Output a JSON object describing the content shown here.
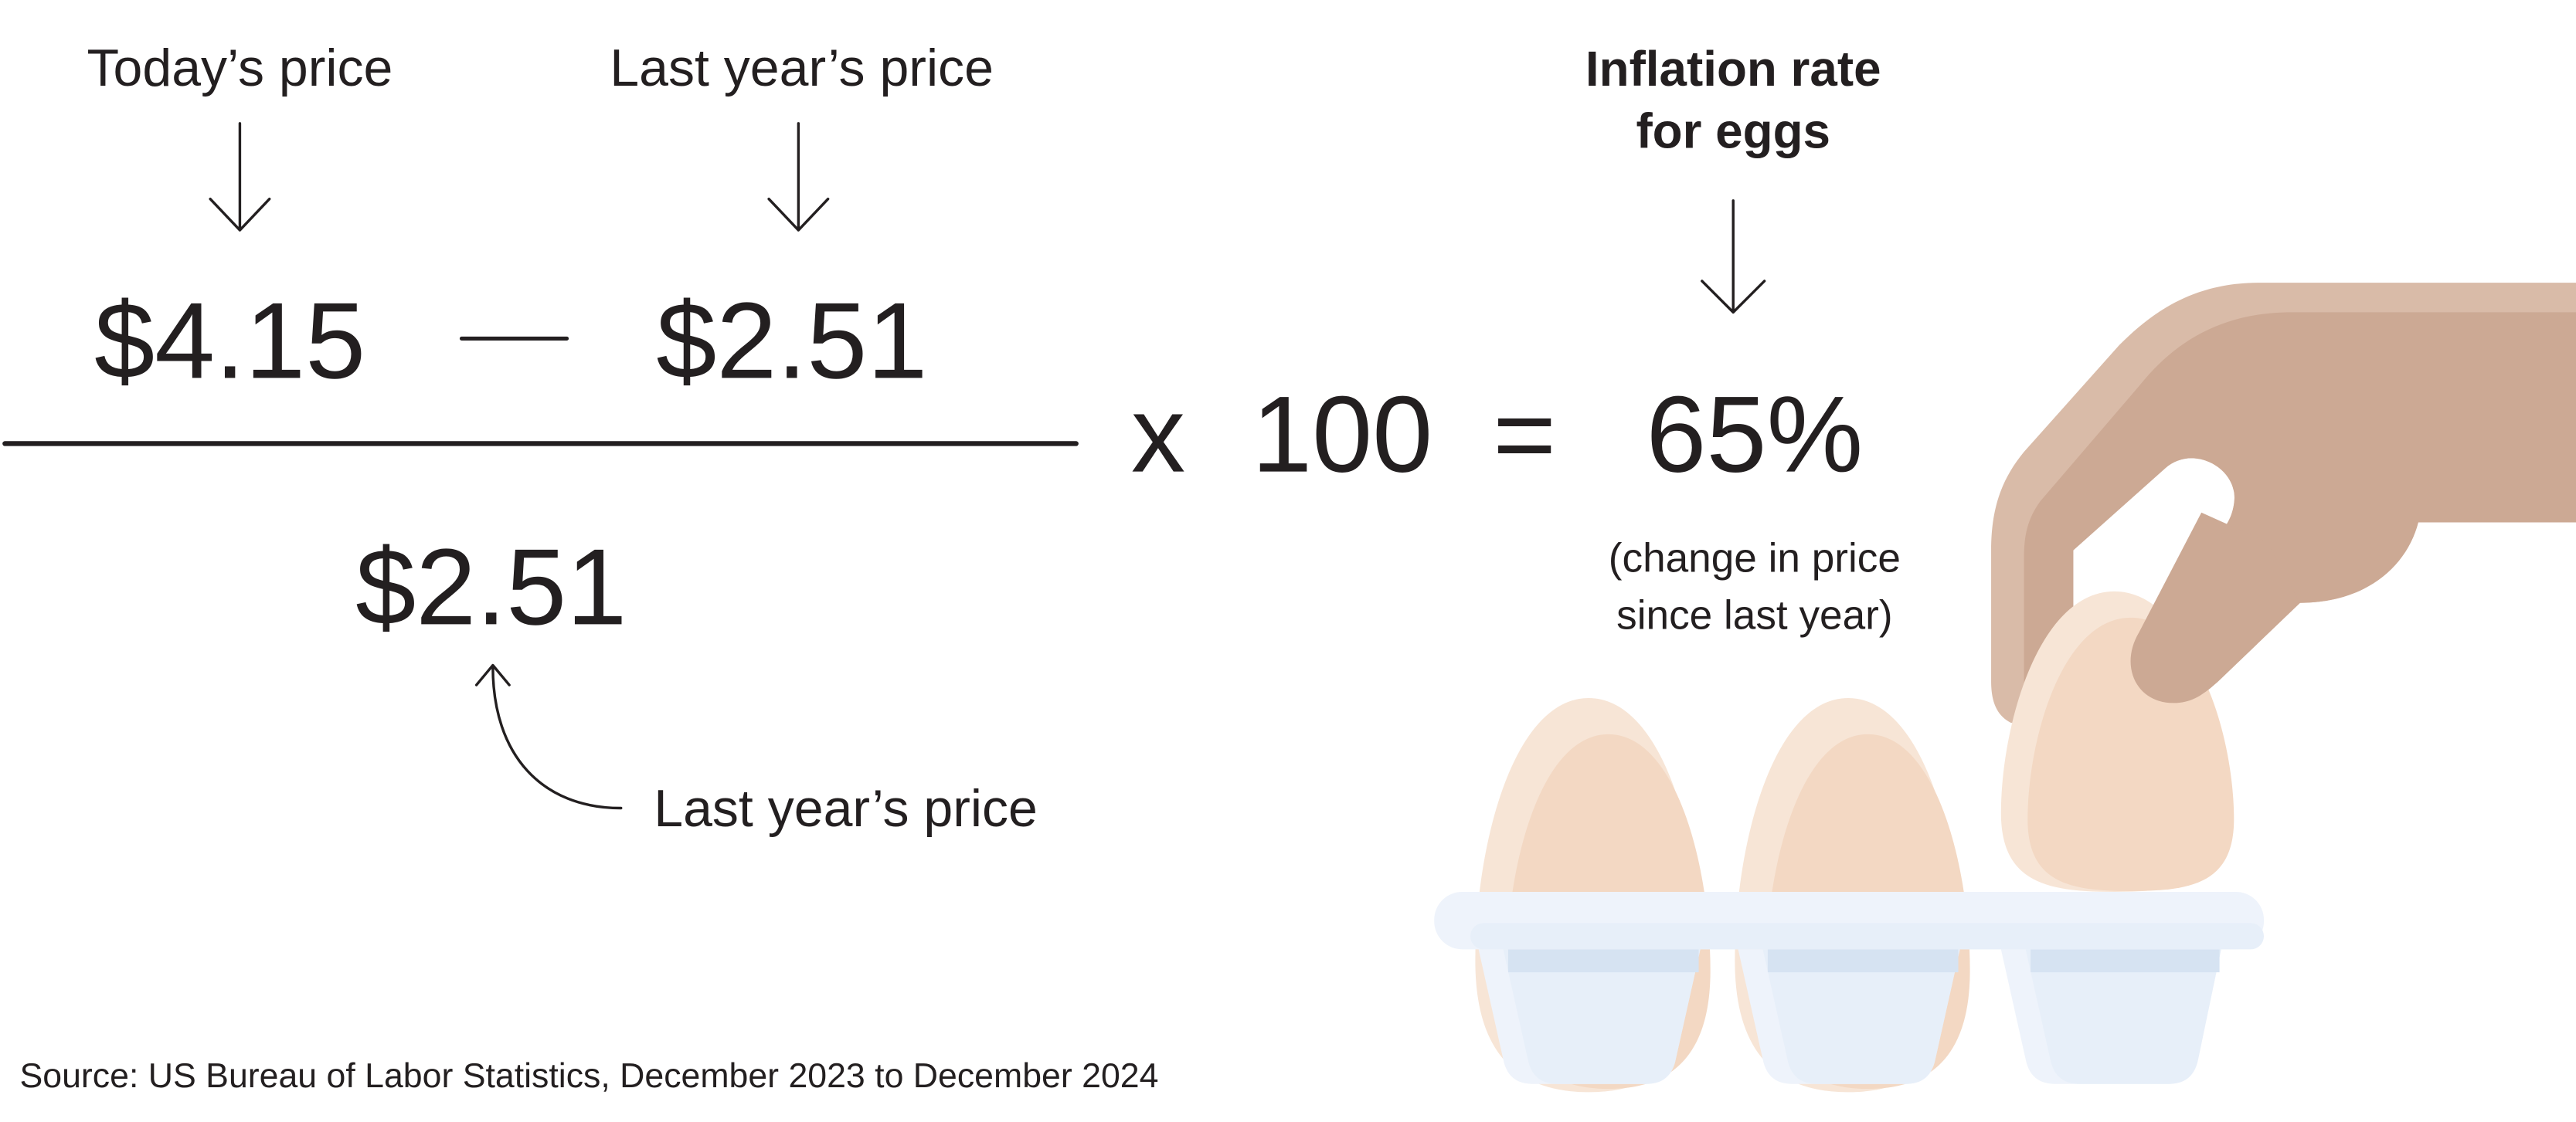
{
  "labels": {
    "numerator_left": "Today’s price",
    "numerator_right": "Last year’s price",
    "denominator": "Last year’s price"
  },
  "formula": {
    "todays_price": "$4.15",
    "minus": "—",
    "last_years_price": "$2.51",
    "denominator_value": "$2.51",
    "times": "x",
    "multiplier": "100",
    "equals": "=",
    "result": "65%"
  },
  "result_label": {
    "line1": "Inflation rate",
    "line2": "for eggs"
  },
  "result_note": {
    "line1": "(change in price",
    "line2": "since last year)"
  },
  "source": "Source: US Bureau of Labor Statistics, December 2023 to December 2024",
  "colors": {
    "text": "#231f20",
    "hand_light": "#d9bba8",
    "hand_dark": "#cca994",
    "egg_light": "#f7e5d6",
    "egg_dark": "#f3d8c3",
    "tray_light": "#eef3fb",
    "tray": "#e7eff9",
    "tray_band": "#d6e3f2"
  },
  "illustration": {
    "icon": "hand-picking-egg-from-carton-icon"
  }
}
